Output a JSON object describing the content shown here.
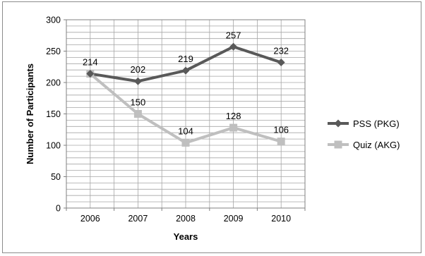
{
  "chart_data": {
    "type": "line",
    "categories": [
      "2006",
      "2007",
      "2008",
      "2009",
      "2010"
    ],
    "series": [
      {
        "name": "PSS (PKG)",
        "values": [
          214,
          202,
          219,
          257,
          232
        ],
        "color": "#595959",
        "marker": "diamond"
      },
      {
        "name": "Quiz (AKG)",
        "values": [
          214,
          150,
          104,
          128,
          106
        ],
        "color": "#bfbfbf",
        "marker": "square"
      }
    ],
    "xlabel": "Years",
    "ylabel": "Number of Participants",
    "ylim": [
      0,
      300
    ],
    "yticks": [
      0,
      50,
      100,
      150,
      200,
      250,
      300
    ],
    "grid": true,
    "legend_position": "right",
    "data_labels": [
      {
        "series": 0,
        "labels": [
          "214",
          "202",
          "219",
          "257",
          "232"
        ]
      },
      {
        "series": 1,
        "labels": [
          "",
          "150",
          "104",
          "128",
          "106"
        ]
      }
    ]
  }
}
